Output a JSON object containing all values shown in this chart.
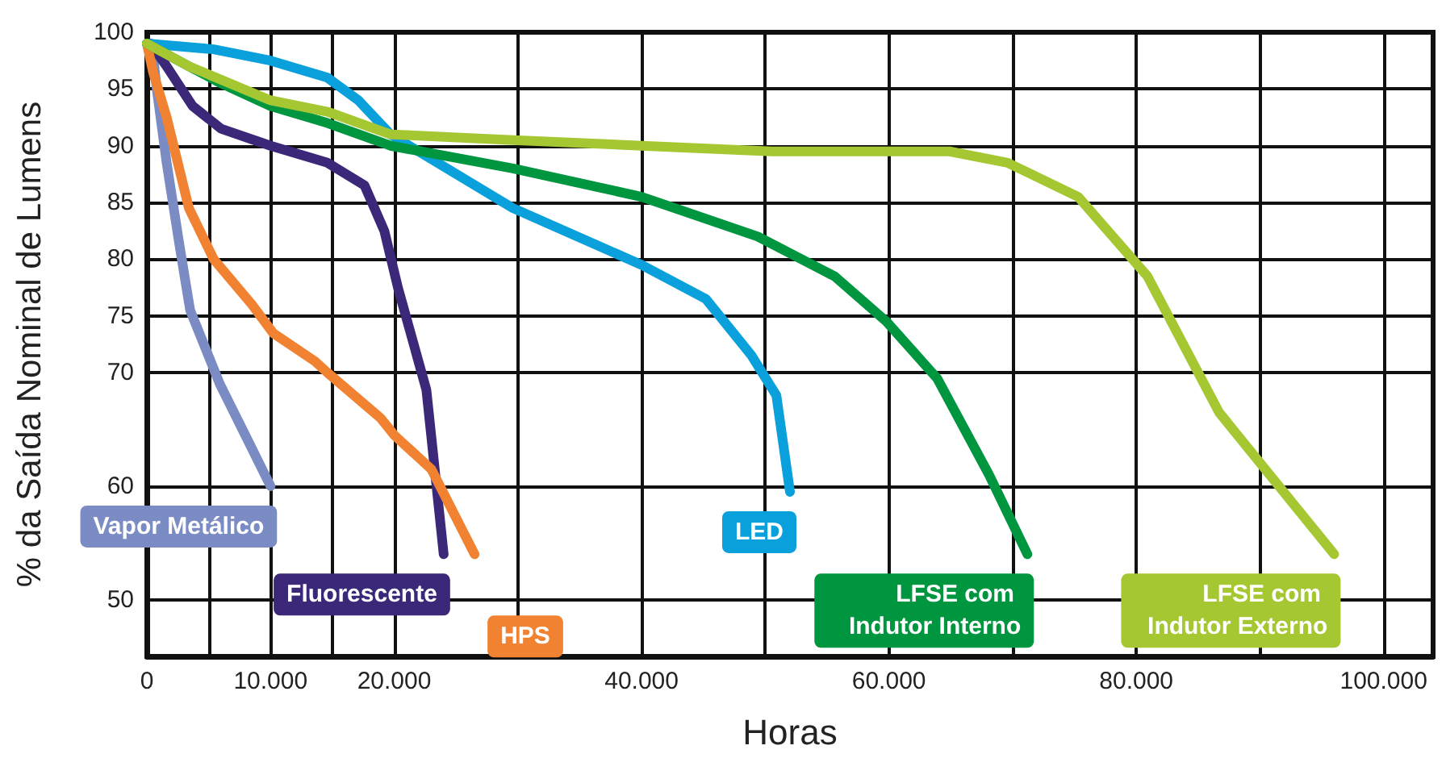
{
  "chart_data": {
    "type": "line",
    "xlabel": "Horas",
    "ylabel": "% da Saída Nominal de Lumens",
    "xlim": [
      0,
      104000
    ],
    "ylim": [
      45,
      100
    ],
    "xticks": [
      0,
      {
        "value": 5000,
        "label": null
      },
      {
        "value": 10000,
        "label": "10.000"
      },
      {
        "value": 15000,
        "label": null
      },
      {
        "value": 20000,
        "label": "20.000"
      },
      {
        "value": 30000,
        "label": null
      },
      {
        "value": 40000,
        "label": "40.000"
      },
      {
        "value": 50000,
        "label": null
      },
      {
        "value": 60000,
        "label": "60.000"
      },
      {
        "value": 70000,
        "label": null
      },
      {
        "value": 80000,
        "label": "80.000"
      },
      {
        "value": 90000,
        "label": null
      },
      {
        "value": 100000,
        "label": "100.000"
      }
    ],
    "yticks": [
      50,
      60,
      70,
      75,
      80,
      85,
      90,
      95,
      100
    ],
    "grid": true,
    "legend": false,
    "marker": "none",
    "line_style": "solid",
    "series": [
      {
        "name": "Vapor Metálico",
        "color": "#7b8bc3",
        "x": [
          0,
          500,
          800,
          1600,
          2600,
          3500,
          5900,
          7500,
          10000
        ],
        "values": [
          99,
          98,
          95,
          88.5,
          81.5,
          75.5,
          69,
          65.5,
          60
        ]
      },
      {
        "name": "Fluorescente",
        "color": "#3c2878",
        "x": [
          0,
          300,
          1600,
          3700,
          6000,
          10000,
          14600,
          17600,
          19200,
          20300,
          22600,
          24000
        ],
        "values": [
          99,
          99,
          97,
          93.5,
          91.5,
          90,
          88.5,
          86.5,
          82.5,
          77.5,
          68.5,
          54
        ]
      },
      {
        "name": "HPS",
        "color": "#f08232",
        "x": [
          0,
          500,
          1600,
          3400,
          5400,
          8500,
          10200,
          13600,
          14600,
          18900,
          20000,
          23000,
          26500
        ],
        "values": [
          99,
          96.5,
          92.5,
          84.5,
          80,
          76,
          73.5,
          71,
          70,
          66,
          64.5,
          61.5,
          54
        ]
      },
      {
        "name": "LED",
        "color": "#0aa0dc",
        "x": [
          0,
          5400,
          10000,
          14600,
          17100,
          19700,
          29600,
          40000,
          45200,
          48900,
          50900,
          52000
        ],
        "values": [
          99,
          98.5,
          97.5,
          96,
          94,
          91,
          84.5,
          79.5,
          76.5,
          71.5,
          68,
          59.5
        ]
      },
      {
        "name": "LFSE com Indutor Interno",
        "color": "#009640",
        "x": [
          0,
          3400,
          6000,
          10000,
          14600,
          19700,
          29600,
          40000,
          49400,
          55600,
          59800,
          63900,
          68100,
          71200
        ],
        "values": [
          99,
          97,
          95.5,
          93.5,
          92,
          90,
          88,
          85.5,
          82,
          78.5,
          74.5,
          69.5,
          61,
          54
        ]
      },
      {
        "name": "LFSE com Indutor Externo",
        "color": "#a5c832",
        "x": [
          0,
          3400,
          10000,
          14600,
          19700,
          29600,
          40000,
          50500,
          64900,
          69600,
          75300,
          80900,
          86700,
          96000
        ],
        "values": [
          99,
          97,
          94,
          93,
          91,
          90.5,
          90,
          89.5,
          89.5,
          88.5,
          85.5,
          78.5,
          66.5,
          54
        ]
      }
    ]
  }
}
